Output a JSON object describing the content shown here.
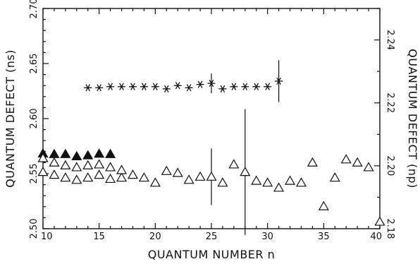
{
  "chart_data": {
    "type": "scatter",
    "title": "",
    "xlabel": "QUANTUM NUMBER n",
    "ylabel_left": "QUANTUM DEFECT (ns)",
    "ylabel_right": "QUANTUM DEFECT (np)",
    "xlim": [
      10,
      40
    ],
    "ylim_left": [
      2.5,
      2.7
    ],
    "ylim_right": [
      2.18,
      2.25
    ],
    "x_ticks": [
      {
        "value": 10,
        "label": "10"
      },
      {
        "value": 15,
        "label": "15"
      },
      {
        "value": 20,
        "label": "20"
      },
      {
        "value": 25,
        "label": "25"
      },
      {
        "value": 30,
        "label": "30"
      },
      {
        "value": 35,
        "label": "35"
      },
      {
        "value": 40,
        "label": "40"
      }
    ],
    "y_left_ticks": [
      {
        "value": 2.5,
        "label": "2.50"
      },
      {
        "value": 2.55,
        "label": "2.55"
      },
      {
        "value": 2.6,
        "label": "2.60"
      },
      {
        "value": 2.65,
        "label": "2.65"
      },
      {
        "value": 2.7,
        "label": "2.70"
      }
    ],
    "y_right_ticks": [
      {
        "value": 2.18,
        "label": "2.18"
      },
      {
        "value": 2.2,
        "label": "2.20"
      },
      {
        "value": 2.22,
        "label": "2.22"
      },
      {
        "value": 2.24,
        "label": "2.24"
      }
    ],
    "grid": false,
    "series": [
      {
        "marker": "asterisk",
        "axis": "left",
        "points": [
          {
            "x": 14,
            "y": 2.628
          },
          {
            "x": 15,
            "y": 2.628
          },
          {
            "x": 16,
            "y": 2.629
          },
          {
            "x": 17,
            "y": 2.629
          },
          {
            "x": 18,
            "y": 2.629
          },
          {
            "x": 19,
            "y": 2.629
          },
          {
            "x": 20,
            "y": 2.629
          },
          {
            "x": 21,
            "y": 2.627
          },
          {
            "x": 22,
            "y": 2.63
          },
          {
            "x": 23,
            "y": 2.628
          },
          {
            "x": 24,
            "y": 2.631
          },
          {
            "x": 25,
            "y": 2.632,
            "err": 0.009
          },
          {
            "x": 26,
            "y": 2.627
          },
          {
            "x": 27,
            "y": 2.629
          },
          {
            "x": 28,
            "y": 2.629
          },
          {
            "x": 29,
            "y": 2.629
          },
          {
            "x": 30,
            "y": 2.629
          },
          {
            "x": 31,
            "y": 2.634,
            "err": 0.019
          }
        ]
      },
      {
        "marker": "triangle-filled",
        "axis": "right",
        "points": [
          {
            "x": 10,
            "y": 2.2039
          },
          {
            "x": 11,
            "y": 2.2037
          },
          {
            "x": 12,
            "y": 2.2037
          },
          {
            "x": 13,
            "y": 2.203
          },
          {
            "x": 14,
            "y": 2.2033
          },
          {
            "x": 15,
            "y": 2.2038
          },
          {
            "x": 16,
            "y": 2.2037
          }
        ]
      },
      {
        "marker": "triangle-open",
        "axis": "right",
        "points": [
          {
            "x": 10,
            "y": 2.198
          },
          {
            "x": 10,
            "y": 2.2024
          },
          {
            "x": 11,
            "y": 2.1971
          },
          {
            "x": 11,
            "y": 2.201
          },
          {
            "x": 12,
            "y": 2.1962
          },
          {
            "x": 12,
            "y": 2.2001
          },
          {
            "x": 13,
            "y": 2.1955
          },
          {
            "x": 13,
            "y": 2.1995
          },
          {
            "x": 14,
            "y": 2.1962
          },
          {
            "x": 14,
            "y": 2.2001
          },
          {
            "x": 15,
            "y": 2.1971
          },
          {
            "x": 15,
            "y": 2.2004
          },
          {
            "x": 16,
            "y": 2.1958
          },
          {
            "x": 16,
            "y": 2.1995
          },
          {
            "x": 17,
            "y": 2.1962
          },
          {
            "x": 17,
            "y": 2.1986
          },
          {
            "x": 18,
            "y": 2.1971
          },
          {
            "x": 19,
            "y": 2.1962
          },
          {
            "x": 20,
            "y": 2.1946
          },
          {
            "x": 21,
            "y": 2.1983
          },
          {
            "x": 22,
            "y": 2.1977
          },
          {
            "x": 23,
            "y": 2.1955
          },
          {
            "x": 24,
            "y": 2.1965
          },
          {
            "x": 25,
            "y": 2.1965,
            "err": 0.009
          },
          {
            "x": 26,
            "y": 2.1946
          },
          {
            "x": 27,
            "y": 2.2004
          },
          {
            "x": 28,
            "y": 2.198,
            "err": 0.02
          },
          {
            "x": 29,
            "y": 2.1952
          },
          {
            "x": 30,
            "y": 2.1946
          },
          {
            "x": 31,
            "y": 2.193
          },
          {
            "x": 32,
            "y": 2.1952
          },
          {
            "x": 33,
            "y": 2.1946
          },
          {
            "x": 34,
            "y": 2.201
          },
          {
            "x": 35,
            "y": 2.1871
          },
          {
            "x": 36,
            "y": 2.1962
          },
          {
            "x": 37,
            "y": 2.202
          },
          {
            "x": 38,
            "y": 2.201
          },
          {
            "x": 39,
            "y": 2.1995
          },
          {
            "x": 40,
            "y": 2.1822
          }
        ]
      }
    ]
  }
}
